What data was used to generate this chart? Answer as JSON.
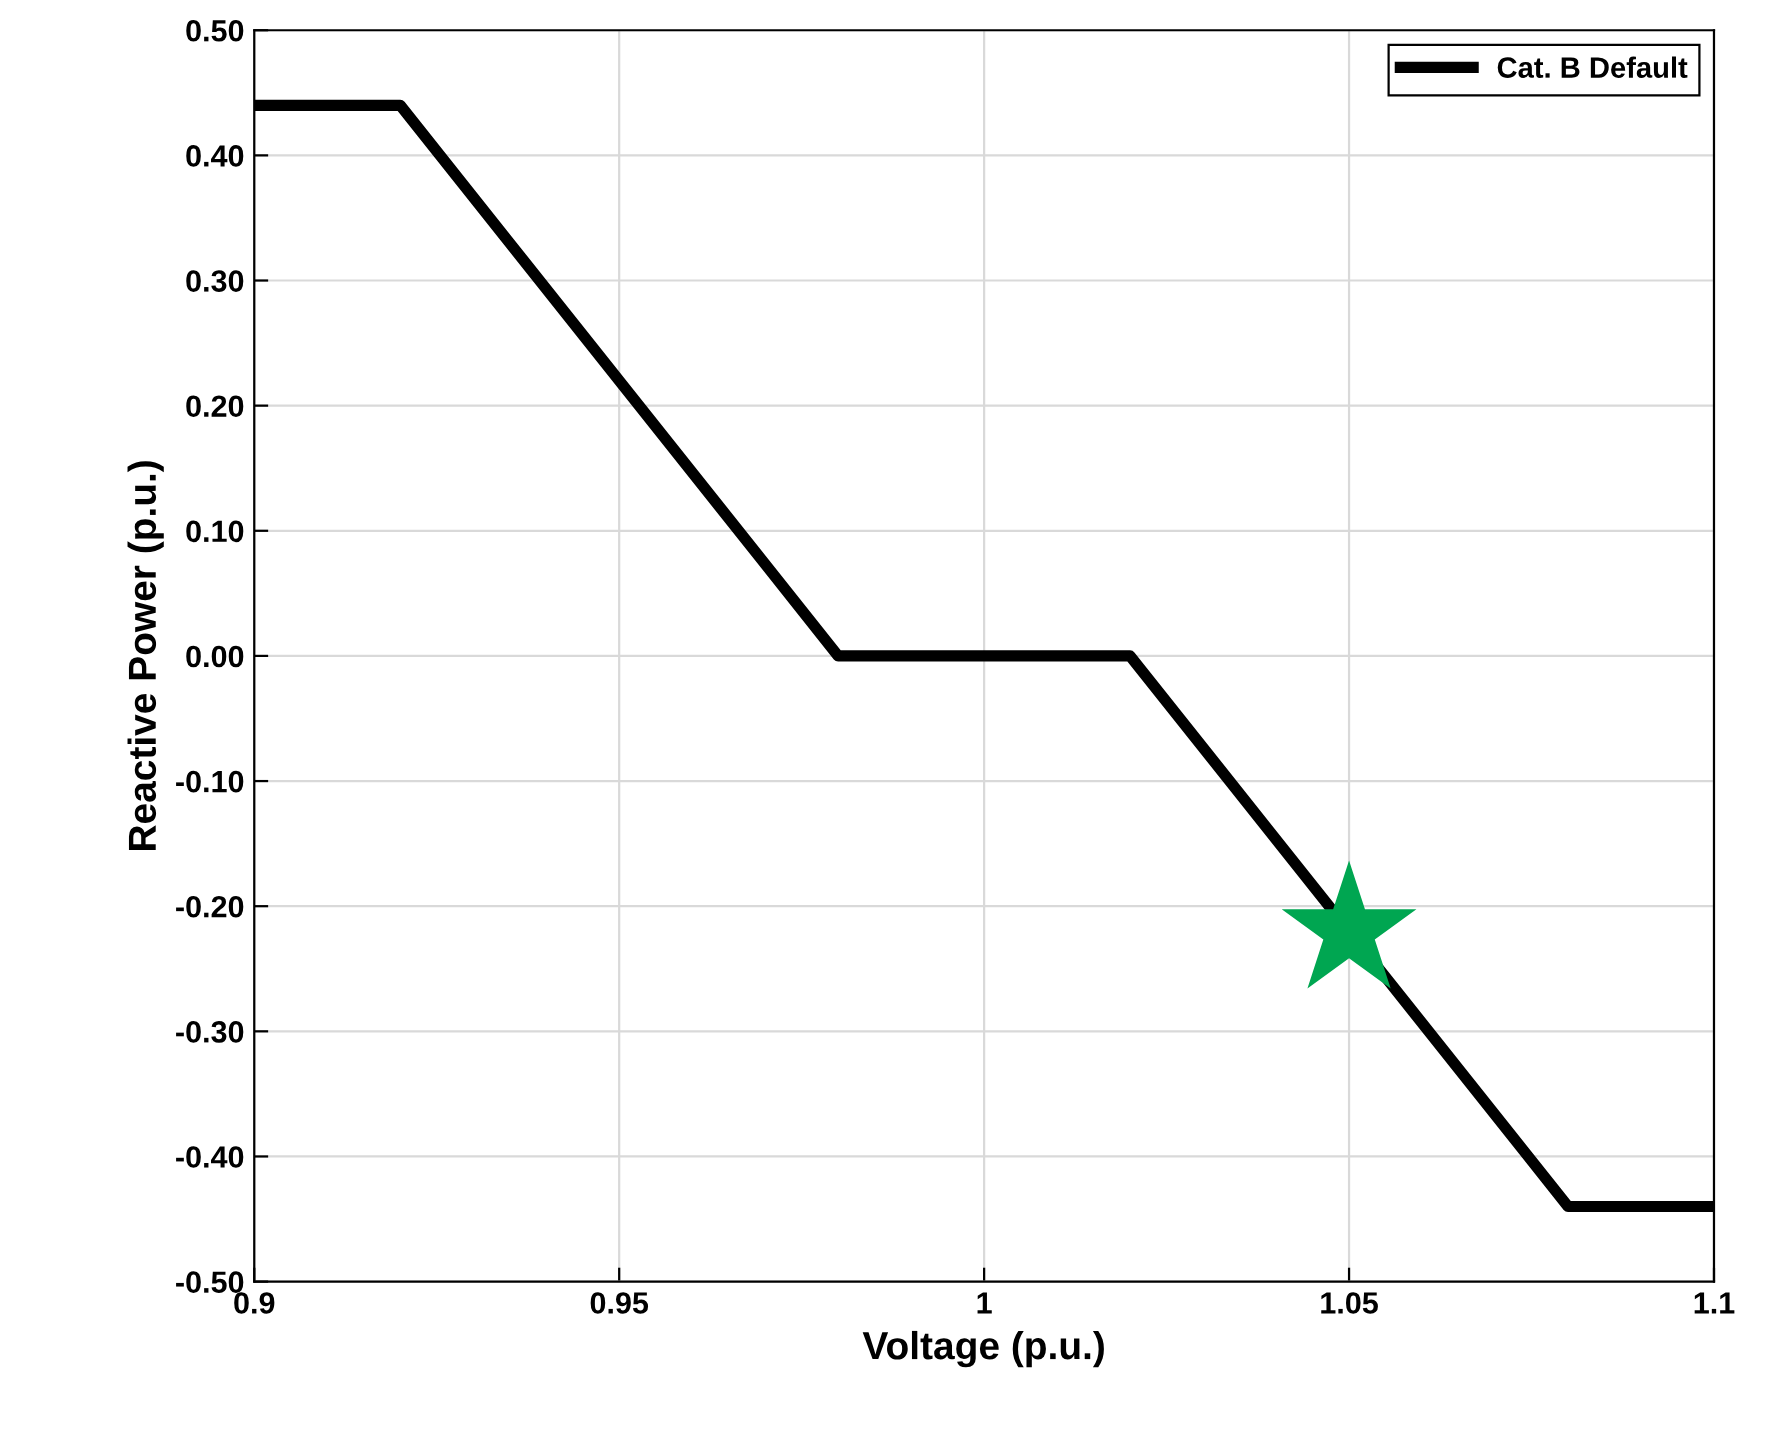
{
  "chart_data": {
    "type": "line",
    "xlabel": "Voltage (p.u.)",
    "ylabel": "Reactive Power (p.u.)",
    "series": [
      {
        "name": "Cat. B Default",
        "color": "#000000",
        "x": [
          0.9,
          0.92,
          0.98,
          1.02,
          1.08,
          1.1
        ],
        "values": [
          0.44,
          0.44,
          0,
          0,
          -0.44,
          -0.44
        ],
        "marker": "none",
        "line_style": "solid"
      },
      {
        "type": "scatter",
        "color": "#00a651",
        "x": [
          1.05
        ],
        "values": [
          -0.22
        ],
        "marker": "star"
      }
    ],
    "xlim": [
      0.9,
      1.1
    ],
    "xticks": [
      0.9,
      0.95,
      1,
      1.05,
      1.1
    ],
    "ylim": [
      -0.5,
      0.5
    ],
    "yticks": [
      {
        "value": -0.5,
        "label": "-0.50"
      },
      {
        "value": -0.4,
        "label": "-0.40"
      },
      {
        "value": -0.3,
        "label": "-0.30"
      },
      {
        "value": -0.2,
        "label": "-0.20"
      },
      {
        "value": -0.1,
        "label": "-0.10"
      },
      {
        "value": 0,
        "label": "0.00"
      },
      {
        "value": 0.1,
        "label": "0.10"
      },
      {
        "value": 0.2,
        "label": "0.20"
      },
      {
        "value": 0.3,
        "label": "0.30"
      },
      {
        "value": 0.4,
        "label": "0.40"
      },
      {
        "value": 0.5,
        "label": "0.50"
      }
    ],
    "grid": true,
    "legend": "top right"
  }
}
